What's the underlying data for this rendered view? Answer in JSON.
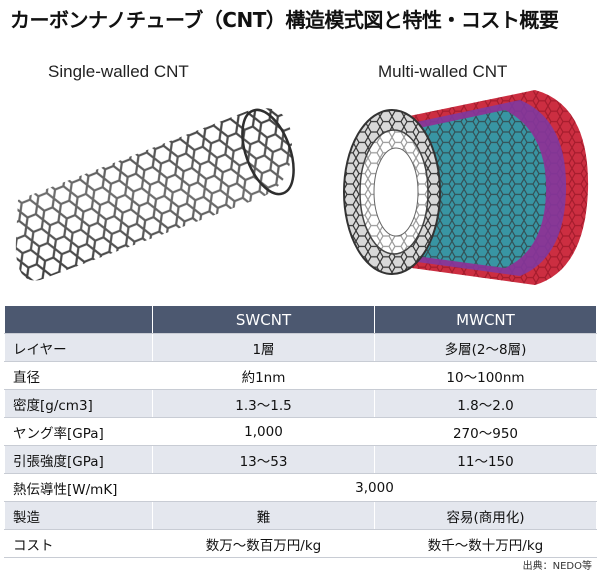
{
  "title": "カーボンナノチューブ（CNT）構造模式図と特性・コスト概要",
  "figures": {
    "single_label": "Single-walled CNT",
    "multi_label": "Multi-walled CNT"
  },
  "table": {
    "headers": [
      "",
      "SWCNT",
      "MWCNT"
    ],
    "rows": [
      {
        "label": "レイヤー",
        "sw": "1層",
        "mw": "多層(2～8層)"
      },
      {
        "label": "直径",
        "sw": "約1nm",
        "mw": "10～100nm"
      },
      {
        "label": "密度[g/cm3]",
        "sw": "1.3～1.5",
        "mw": "1.8～2.0"
      },
      {
        "label": "ヤング率[GPa]",
        "sw": "1,000",
        "mw": "270～950"
      },
      {
        "label": "引張強度[GPa]",
        "sw": "13～53",
        "mw": "11～150"
      },
      {
        "label": "熱伝導性[W/mK]",
        "both": "3,000"
      },
      {
        "label": "製造",
        "sw": "難",
        "mw": "容易(商用化)"
      },
      {
        "label": "コスト",
        "sw": "数万～数百万円/kg",
        "mw": "数千～数十万円/kg"
      }
    ]
  },
  "source": "出典：NEDO等",
  "colors": {
    "header_bg": "#4c5870",
    "row_shade": "#e4e7ee",
    "tube_gray": "#555555",
    "mw_layers": [
      "#c7172c",
      "#7b3aa6",
      "#2aa6a6",
      "#c8c8c8"
    ]
  }
}
